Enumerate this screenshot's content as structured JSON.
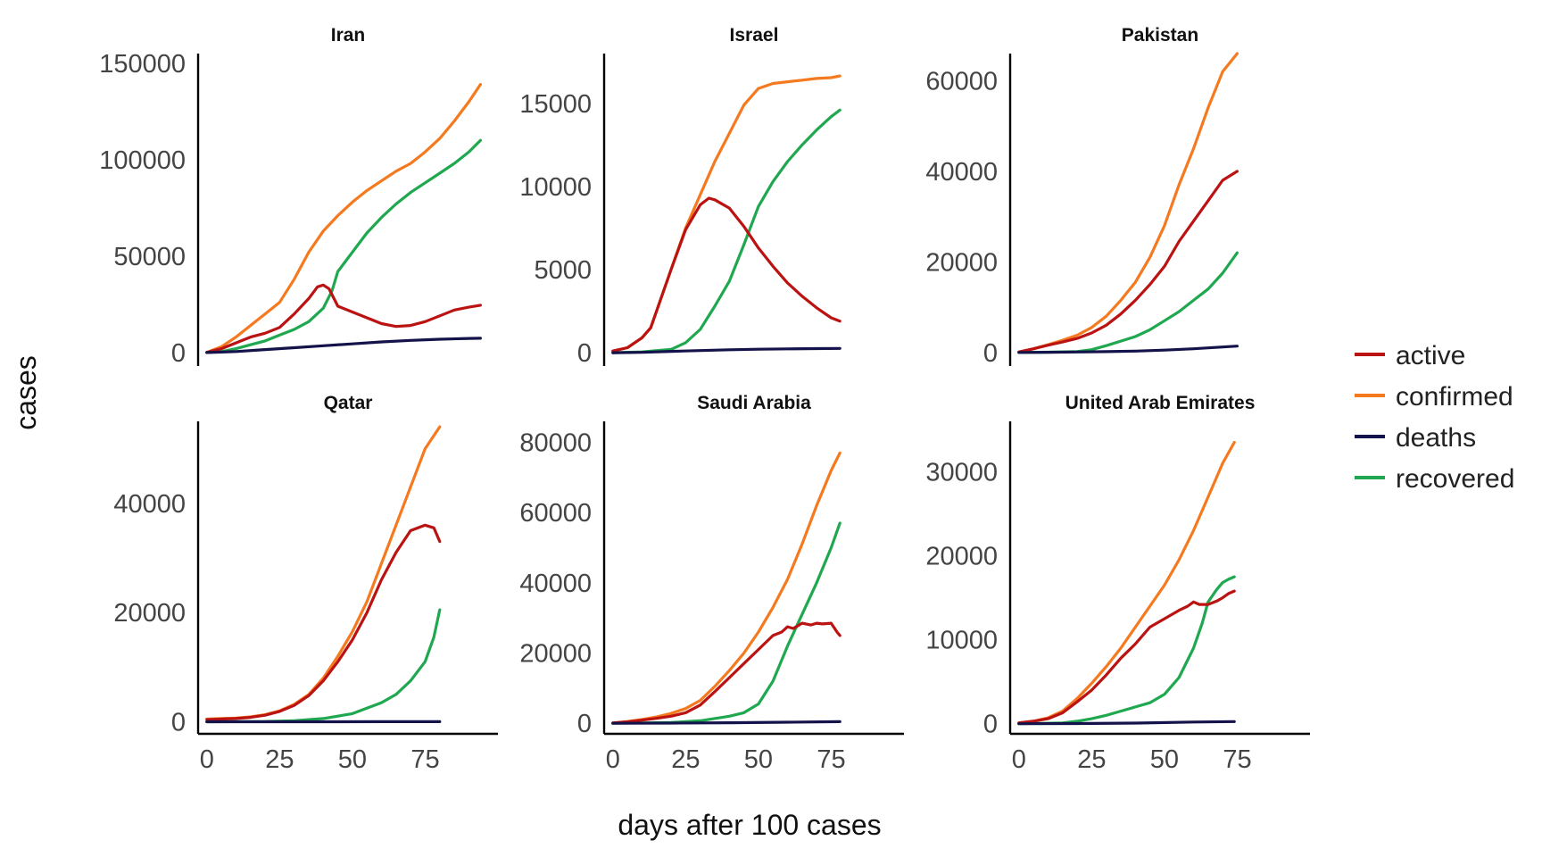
{
  "colors": {
    "active": "#bb1212",
    "confirmed": "#f57a1f",
    "deaths": "#14124a",
    "recovered": "#1fa84f"
  },
  "chart_data": {
    "type": "line",
    "layout": "facet-grid-2x3",
    "xlabel": "days after 100 cases",
    "ylabel": "cases",
    "xticks": [
      0,
      25,
      50,
      75
    ],
    "xlim": [
      -3,
      100
    ],
    "scales": "free_y",
    "grid": false,
    "legend": {
      "position": "right",
      "entries": [
        "active",
        "confirmed",
        "deaths",
        "recovered"
      ]
    },
    "panels": [
      {
        "title": "Iran",
        "ylim": [
          -7000,
          155000
        ],
        "yticks": [
          0,
          50000,
          100000,
          150000
        ],
        "series": [
          {
            "name": "confirmed",
            "x": [
              0,
              5,
              10,
              15,
              20,
              25,
              30,
              35,
              40,
              45,
              50,
              55,
              60,
              65,
              70,
              75,
              80,
              85,
              90,
              94
            ],
            "y": [
              100,
              3000,
              8000,
              14000,
              20000,
              26000,
              38000,
              52000,
              63000,
              71000,
              78000,
              84000,
              89000,
              94000,
              98000,
              104000,
              111000,
              120000,
              130000,
              139000
            ]
          },
          {
            "name": "active",
            "x": [
              0,
              5,
              10,
              15,
              20,
              25,
              30,
              35,
              38,
              40,
              42,
              45,
              50,
              55,
              60,
              65,
              70,
              75,
              80,
              85,
              90,
              94
            ],
            "y": [
              100,
              2000,
              5000,
              8000,
              10000,
              13000,
              20000,
              28000,
              34000,
              35000,
              33000,
              24000,
              21000,
              18000,
              15000,
              13500,
              14000,
              16000,
              19000,
              22000,
              23500,
              24500
            ]
          },
          {
            "name": "recovered",
            "x": [
              0,
              5,
              10,
              15,
              20,
              25,
              30,
              35,
              40,
              43,
              45,
              50,
              55,
              60,
              65,
              70,
              75,
              80,
              85,
              90,
              94
            ],
            "y": [
              0,
              500,
              2000,
              4000,
              6000,
              9000,
              12000,
              16000,
              23000,
              32000,
              42000,
              52000,
              62000,
              70000,
              77000,
              83000,
              88000,
              93000,
              98000,
              104000,
              110000
            ]
          },
          {
            "name": "deaths",
            "x": [
              0,
              10,
              20,
              30,
              40,
              50,
              60,
              70,
              80,
              90,
              94
            ],
            "y": [
              10,
              500,
              1500,
              2500,
              3500,
              4500,
              5500,
              6300,
              6900,
              7300,
              7400
            ]
          }
        ]
      },
      {
        "title": "Israel",
        "ylim": [
          -800,
          18000
        ],
        "yticks": [
          0,
          5000,
          10000,
          15000
        ],
        "series": [
          {
            "name": "confirmed",
            "x": [
              0,
              5,
              10,
              13,
              15,
              20,
              25,
              30,
              35,
              40,
              45,
              50,
              55,
              60,
              65,
              70,
              75,
              78
            ],
            "y": [
              100,
              300,
              900,
              1500,
              2500,
              5000,
              7500,
              9500,
              11500,
              13200,
              14900,
              15900,
              16200,
              16300,
              16400,
              16500,
              16550,
              16650
            ]
          },
          {
            "name": "active",
            "x": [
              0,
              5,
              10,
              13,
              15,
              20,
              25,
              30,
              33,
              35,
              40,
              45,
              50,
              55,
              60,
              65,
              70,
              75,
              78
            ],
            "y": [
              100,
              300,
              900,
              1500,
              2500,
              5000,
              7400,
              8900,
              9300,
              9200,
              8700,
              7600,
              6300,
              5200,
              4200,
              3400,
              2700,
              2100,
              1900
            ]
          },
          {
            "name": "recovered",
            "x": [
              0,
              10,
              20,
              25,
              30,
              35,
              40,
              45,
              50,
              55,
              60,
              65,
              70,
              75,
              78
            ],
            "y": [
              0,
              50,
              200,
              600,
              1400,
              2800,
              4300,
              6500,
              8800,
              10300,
              11500,
              12500,
              13400,
              14200,
              14600
            ]
          },
          {
            "name": "deaths",
            "x": [
              0,
              10,
              20,
              30,
              40,
              50,
              60,
              70,
              78
            ],
            "y": [
              0,
              20,
              80,
              130,
              180,
              210,
              230,
              250,
              260
            ]
          }
        ]
      },
      {
        "title": "Pakistan",
        "ylim": [
          -3000,
          66000
        ],
        "yticks": [
          0,
          20000,
          40000,
          60000
        ],
        "series": [
          {
            "name": "confirmed",
            "x": [
              0,
              5,
              10,
              15,
              20,
              25,
              30,
              35,
              40,
              45,
              50,
              55,
              60,
              65,
              70,
              75
            ],
            "y": [
              100,
              800,
              1700,
              2700,
              3800,
              5500,
              8000,
              11500,
              15500,
              21000,
              28000,
              37000,
              45000,
              54000,
              62000,
              66000
            ]
          },
          {
            "name": "active",
            "x": [
              0,
              5,
              10,
              15,
              20,
              25,
              30,
              35,
              40,
              45,
              50,
              55,
              60,
              65,
              70,
              75
            ],
            "y": [
              100,
              800,
              1600,
              2300,
              3100,
              4300,
              6000,
              8500,
              11500,
              15000,
              19000,
              24500,
              29000,
              33500,
              38000,
              40000
            ]
          },
          {
            "name": "recovered",
            "x": [
              0,
              10,
              20,
              25,
              30,
              35,
              40,
              45,
              50,
              55,
              60,
              65,
              70,
              75
            ],
            "y": [
              0,
              50,
              200,
              600,
              1500,
              2500,
              3500,
              5000,
              7000,
              9000,
              11500,
              14000,
              17500,
              22000
            ]
          },
          {
            "name": "deaths",
            "x": [
              0,
              10,
              20,
              30,
              40,
              50,
              60,
              70,
              75
            ],
            "y": [
              0,
              30,
              100,
              180,
              300,
              500,
              800,
              1200,
              1400
            ]
          }
        ]
      },
      {
        "title": "Qatar",
        "ylim": [
          -2200,
          55000
        ],
        "yticks": [
          0,
          20000,
          40000
        ],
        "series": [
          {
            "name": "confirmed",
            "x": [
              0,
              5,
              10,
              15,
              20,
              25,
              30,
              35,
              40,
              45,
              50,
              55,
              60,
              65,
              70,
              75,
              80
            ],
            "y": [
              500,
              600,
              700,
              900,
              1300,
              2000,
              3200,
              5000,
              8000,
              12000,
              16500,
              22000,
              29000,
              36000,
              43000,
              50000,
              54000
            ]
          },
          {
            "name": "active",
            "x": [
              0,
              5,
              10,
              15,
              20,
              25,
              30,
              35,
              40,
              45,
              50,
              55,
              60,
              65,
              70,
              75,
              78,
              80
            ],
            "y": [
              400,
              500,
              600,
              800,
              1200,
              1900,
              3000,
              4800,
              7500,
              11000,
              15000,
              20000,
              26000,
              31000,
              35000,
              36000,
              35500,
              33000
            ]
          },
          {
            "name": "recovered",
            "x": [
              0,
              20,
              30,
              40,
              50,
              55,
              60,
              65,
              70,
              75,
              78,
              80
            ],
            "y": [
              0,
              50,
              200,
              600,
              1500,
              2500,
              3500,
              5000,
              7500,
              11000,
              15500,
              20500
            ]
          },
          {
            "name": "deaths",
            "x": [
              0,
              20,
              40,
              60,
              80
            ],
            "y": [
              0,
              5,
              10,
              20,
              30
            ]
          }
        ]
      },
      {
        "title": "Saudi Arabia",
        "ylim": [
          -3000,
          86000
        ],
        "yticks": [
          0,
          20000,
          40000,
          60000,
          80000
        ],
        "series": [
          {
            "name": "confirmed",
            "x": [
              0,
              5,
              10,
              15,
              20,
              25,
              30,
              35,
              40,
              45,
              50,
              55,
              60,
              65,
              70,
              75,
              78
            ],
            "y": [
              100,
              500,
              1100,
              1800,
              2800,
              4200,
              6500,
              10500,
              15000,
              20000,
              26000,
              33000,
              41000,
              51000,
              62000,
              72000,
              77000
            ]
          },
          {
            "name": "active",
            "x": [
              0,
              5,
              10,
              15,
              20,
              25,
              30,
              35,
              40,
              45,
              50,
              55,
              58,
              60,
              62,
              65,
              68,
              70,
              72,
              75,
              77,
              78
            ],
            "y": [
              100,
              400,
              900,
              1400,
              2000,
              3000,
              5200,
              9000,
              13000,
              17000,
              21000,
              25000,
              26000,
              27500,
              27000,
              28500,
              28000,
              28500,
              28300,
              28500,
              26000,
              25000
            ]
          },
          {
            "name": "recovered",
            "x": [
              0,
              20,
              30,
              40,
              45,
              50,
              55,
              60,
              65,
              70,
              75,
              78
            ],
            "y": [
              0,
              200,
              700,
              2000,
              3000,
              5500,
              12000,
              22000,
              31000,
              40000,
              50000,
              57000
            ]
          },
          {
            "name": "deaths",
            "x": [
              0,
              20,
              40,
              60,
              78
            ],
            "y": [
              0,
              50,
              150,
              300,
              450
            ]
          }
        ]
      },
      {
        "title": "United Arab Emirates",
        "ylim": [
          -1200,
          36000
        ],
        "yticks": [
          0,
          10000,
          20000,
          30000
        ],
        "series": [
          {
            "name": "confirmed",
            "x": [
              0,
              5,
              10,
              15,
              20,
              25,
              30,
              35,
              40,
              45,
              50,
              55,
              60,
              65,
              70,
              74
            ],
            "y": [
              100,
              300,
              700,
              1500,
              3000,
              4800,
              6800,
              9000,
              11500,
              14000,
              16500,
              19500,
              23000,
              27000,
              31000,
              33500
            ]
          },
          {
            "name": "active",
            "x": [
              0,
              5,
              10,
              15,
              20,
              25,
              30,
              35,
              40,
              45,
              50,
              55,
              58,
              60,
              62,
              65,
              68,
              70,
              72,
              74
            ],
            "y": [
              100,
              300,
              600,
              1300,
              2600,
              4000,
              5800,
              7800,
              9500,
              11500,
              12500,
              13500,
              14000,
              14500,
              14200,
              14200,
              14600,
              15000,
              15500,
              15800
            ]
          },
          {
            "name": "recovered",
            "x": [
              0,
              15,
              20,
              25,
              30,
              35,
              40,
              45,
              50,
              55,
              60,
              63,
              65,
              68,
              70,
              72,
              74
            ],
            "y": [
              0,
              100,
              300,
              600,
              1000,
              1500,
              2000,
              2500,
              3500,
              5500,
              9000,
              12000,
              14500,
              16000,
              16800,
              17200,
              17500
            ]
          },
          {
            "name": "deaths",
            "x": [
              0,
              20,
              40,
              60,
              74
            ],
            "y": [
              0,
              20,
              80,
              200,
              260
            ]
          }
        ]
      }
    ]
  }
}
